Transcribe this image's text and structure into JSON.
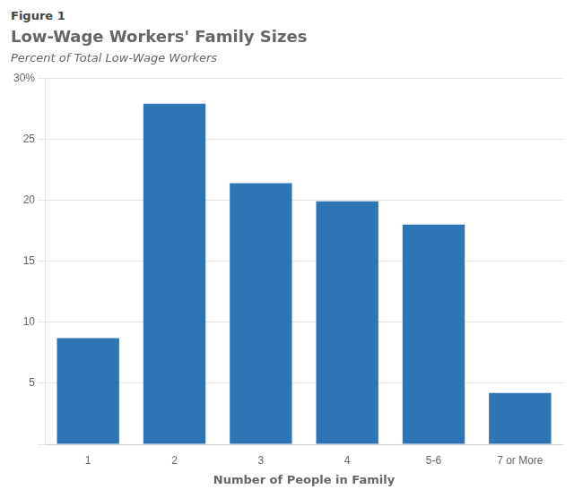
{
  "chart_data": {
    "type": "bar",
    "annotations": [
      "Figure 1"
    ],
    "title": "Low-Wage Workers' Family Sizes",
    "subtitle": "Percent of Total Low-Wage Workers",
    "xlabel": "Number of People in Family",
    "categories": [
      "1",
      "2",
      "3",
      "4",
      "5-6",
      "7 or More"
    ],
    "values": [
      8.7,
      27.9,
      21.4,
      19.9,
      18.0,
      4.2
    ],
    "color": "#2E75B6",
    "ylim": [
      0,
      30
    ],
    "yticks": [
      {
        "value": 0,
        "label": ""
      },
      5,
      10,
      15,
      20,
      25,
      {
        "value": 30,
        "label": "30%"
      }
    ],
    "grid": true
  }
}
